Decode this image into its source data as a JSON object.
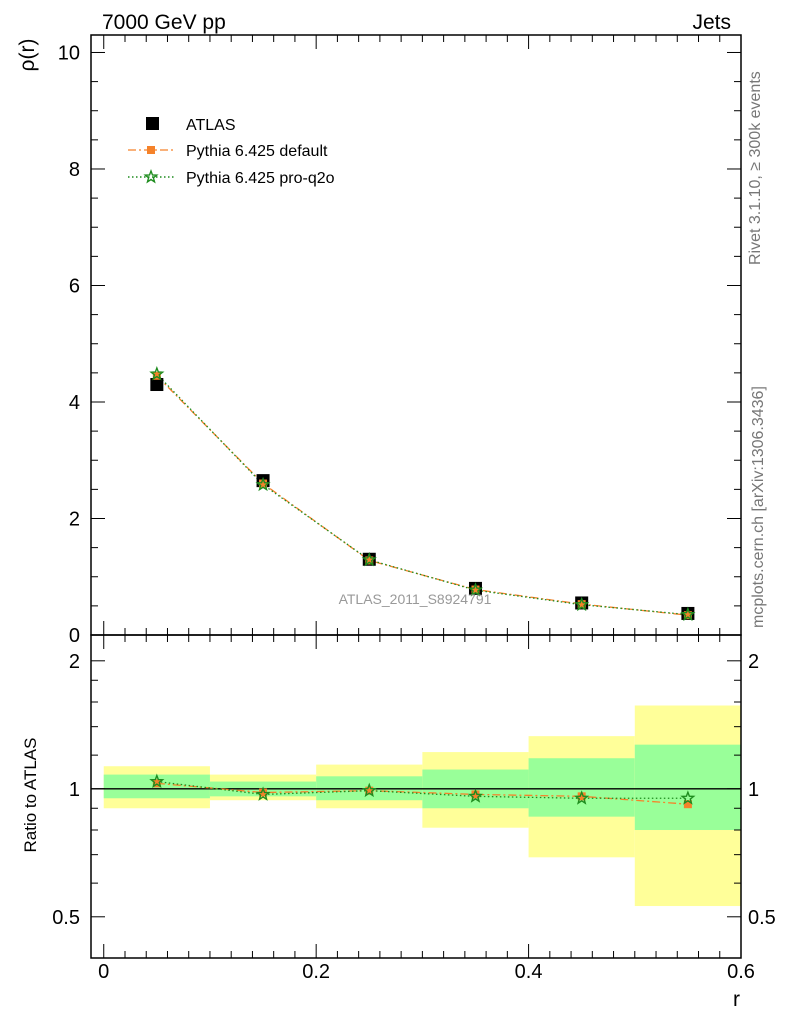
{
  "header": {
    "energy_label": "7000 GeV pp",
    "process_label": "Jets"
  },
  "side": {
    "rivet_label": "Rivet 3.1.10, ≥ 300k events",
    "mcplots_label": "mcplots.cern.ch [arXiv:1306.3436]"
  },
  "analysis_label": "ATLAS_2011_S8924791",
  "chart_data": [
    {
      "type": "scatter",
      "panel": "main",
      "ylabel": "ρ(r)",
      "xlim": [
        -0.012,
        0.6
      ],
      "ylim": [
        0,
        10.3
      ],
      "grid": false,
      "legend": "top-left",
      "yticks": [
        0,
        2,
        4,
        6,
        8,
        10
      ],
      "x": [
        0.05,
        0.15,
        0.25,
        0.35,
        0.45,
        0.55
      ],
      "series": [
        {
          "name": "ATLAS",
          "marker": "square",
          "color": "#000000",
          "values": [
            4.3,
            2.65,
            1.3,
            0.8,
            0.55,
            0.37
          ]
        },
        {
          "name": "Pythia 6.425 default",
          "marker": "square",
          "line": "dashdot",
          "color": "#f5822a",
          "values": [
            4.45,
            2.6,
            1.28,
            0.78,
            0.53,
            0.34
          ]
        },
        {
          "name": "Pythia 6.425 pro-q2o",
          "marker": "star",
          "line": "dotted",
          "color": "#1e8c1e",
          "values": [
            4.48,
            2.58,
            1.29,
            0.77,
            0.52,
            0.35
          ]
        }
      ]
    },
    {
      "type": "line",
      "panel": "ratio",
      "xlabel": "r",
      "ylabel": "Ratio to ATLAS",
      "xlim": [
        -0.012,
        0.6
      ],
      "ylim": [
        0.4,
        2.3
      ],
      "log_y": true,
      "grid": false,
      "xticks": [
        0,
        0.2,
        0.4,
        0.6
      ],
      "yticks": [
        0.5,
        1,
        2
      ],
      "bands": [
        {
          "xlo": 0.0,
          "xhi": 0.1,
          "green": [
            0.95,
            1.08
          ],
          "yellow": [
            0.9,
            1.13
          ]
        },
        {
          "xlo": 0.1,
          "xhi": 0.2,
          "green": [
            0.96,
            1.04
          ],
          "yellow": [
            0.94,
            1.08
          ]
        },
        {
          "xlo": 0.2,
          "xhi": 0.3,
          "green": [
            0.94,
            1.07
          ],
          "yellow": [
            0.9,
            1.14
          ]
        },
        {
          "xlo": 0.3,
          "xhi": 0.4,
          "green": [
            0.9,
            1.11
          ],
          "yellow": [
            0.81,
            1.22
          ]
        },
        {
          "xlo": 0.4,
          "xhi": 0.5,
          "green": [
            0.86,
            1.18
          ],
          "yellow": [
            0.69,
            1.33
          ]
        },
        {
          "xlo": 0.5,
          "xhi": 0.6,
          "green": [
            0.8,
            1.27
          ],
          "yellow": [
            0.53,
            1.57
          ]
        }
      ],
      "x": [
        0.05,
        0.15,
        0.25,
        0.35,
        0.45,
        0.55
      ],
      "series": [
        {
          "name": "Pythia 6.425 default",
          "marker": "square",
          "line": "dashdot",
          "color": "#f5822a",
          "values": [
            1.03,
            0.98,
            0.99,
            0.97,
            0.96,
            0.92
          ]
        },
        {
          "name": "Pythia 6.425 pro-q2o",
          "marker": "star",
          "line": "dotted",
          "color": "#1e8c1e",
          "values": [
            1.04,
            0.97,
            0.99,
            0.96,
            0.95,
            0.95
          ]
        }
      ]
    }
  ]
}
